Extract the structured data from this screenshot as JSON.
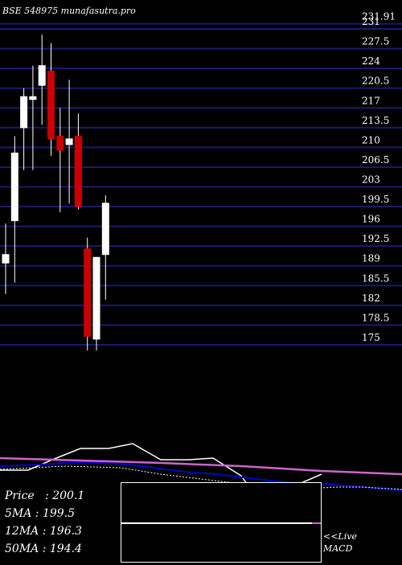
{
  "header": {
    "title": "BSE 548975 munafasutra.pro"
  },
  "colors": {
    "background": "#000000",
    "grid": "#1a1a6e",
    "up": "#ffffff",
    "down": "#cc0000",
    "ma_short": "#ffffff",
    "ma_mid": "#0000cc",
    "ma_long": "#cc66cc",
    "text": "#ffffff"
  },
  "chart_data": {
    "type": "candlestick",
    "title": "BSE 548975 munafasutra.pro",
    "y_ticks": [
      231.91,
      231,
      227.5,
      224,
      220.5,
      217,
      213.5,
      210,
      206.5,
      203,
      199.5,
      196,
      192.5,
      189,
      185.5,
      182,
      178.5,
      175
    ],
    "ylim": [
      172,
      234
    ],
    "candles": [
      {
        "open": 189.5,
        "high": 196.5,
        "low": 184.0,
        "close": 191.0
      },
      {
        "open": 197.0,
        "high": 212.0,
        "low": 186.0,
        "close": 209.0
      },
      {
        "open": 213.5,
        "high": 220.5,
        "low": 206.0,
        "close": 219.0
      },
      {
        "open": 218.5,
        "high": 224.5,
        "low": 206.0,
        "close": 219.0
      },
      {
        "open": 221.0,
        "high": 230.0,
        "low": 214.0,
        "close": 224.5
      },
      {
        "open": 223.5,
        "high": 228.5,
        "low": 208.5,
        "close": 211.5
      },
      {
        "open": 212.0,
        "high": 217.0,
        "low": 198.5,
        "close": 209.5
      },
      {
        "open": 210.5,
        "high": 222.0,
        "low": 200.0,
        "close": 211.5
      },
      {
        "open": 212.0,
        "high": 216.0,
        "low": 199.0,
        "close": 199.5
      },
      {
        "open": 192.0,
        "high": 194.0,
        "low": 174.0,
        "close": 176.5
      },
      {
        "open": 176.0,
        "high": 190.5,
        "low": 174.0,
        "close": 190.5
      },
      {
        "open": 191.0,
        "high": 201.5,
        "low": 183.0,
        "close": 200.1
      }
    ],
    "lower_panel": {
      "type": "line",
      "series": [
        {
          "name": "",
          "color": "#ffffff",
          "width": 1.5,
          "points": [
            [
              0,
              15
            ],
            [
              35,
              15
            ],
            [
              65,
              2
            ],
            [
              100,
              -12
            ],
            [
              135,
              -12
            ],
            [
              165,
              -18
            ],
            [
              200,
              2
            ],
            [
              235,
              2
            ],
            [
              265,
              0
            ],
            [
              300,
              22
            ],
            [
              320,
              50
            ],
            [
              350,
              50
            ],
            [
              365,
              35
            ],
            [
              400,
              20
            ]
          ]
        },
        {
          "name": "",
          "color": "#0000cc",
          "width": 2,
          "points": [
            [
              0,
              10
            ],
            [
              50,
              8
            ],
            [
              100,
              5
            ],
            [
              150,
              7
            ],
            [
              190,
              12
            ],
            [
              230,
              17
            ],
            [
              270,
              20
            ],
            [
              310,
              25
            ],
            [
              355,
              30
            ],
            [
              400,
              32
            ],
            [
              440,
              35
            ],
            [
              500,
              40
            ]
          ]
        },
        {
          "name": "",
          "color": "#cc66cc",
          "width": 2.5,
          "points": [
            [
              0,
              0
            ],
            [
              100,
              3
            ],
            [
              200,
              6
            ],
            [
              300,
              10
            ],
            [
              400,
              16
            ],
            [
              500,
              20
            ]
          ]
        },
        {
          "name": "",
          "color": "#ffffff",
          "width": 1,
          "dash": "2,2",
          "points": [
            [
              0,
              14
            ],
            [
              80,
              10
            ],
            [
              150,
              12
            ],
            [
              200,
              20
            ],
            [
              250,
              26
            ],
            [
              300,
              32
            ],
            [
              330,
              36
            ],
            [
              380,
              38
            ],
            [
              420,
              36
            ],
            [
              450,
              36
            ],
            [
              500,
              39
            ]
          ]
        }
      ]
    }
  },
  "stats": {
    "price": "Price   : 200.1",
    "ma5": "5MA : 199.5",
    "ma12": "12MA : 196.3",
    "ma50": "50MA : 194.4"
  },
  "macd": {
    "live_label": "<<Live",
    "macd_label": "MACD"
  }
}
